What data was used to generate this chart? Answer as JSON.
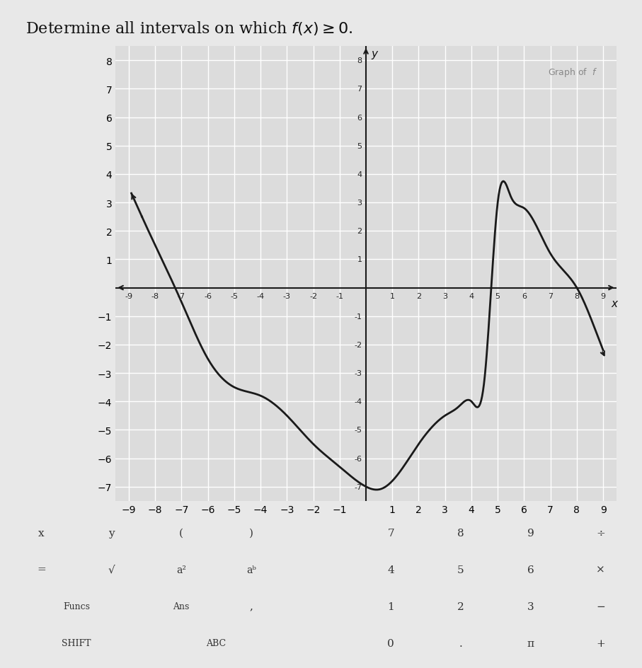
{
  "title": "Determine all intervals on which $f(x) \\geq 0$.",
  "graph_label": "Graph of  $f$",
  "bg_color": "#e8e8e8",
  "plot_bg_color": "#dcdcdc",
  "curve_color": "#1a1a1a",
  "axis_color": "#1a1a1a",
  "grid_color": "#ffffff",
  "xlim": [
    -9.5,
    9.5
  ],
  "ylim": [
    -7.5,
    8.5
  ],
  "xticks": [
    -9,
    -8,
    -7,
    -6,
    -5,
    -4,
    -3,
    -2,
    -1,
    1,
    2,
    3,
    4,
    5,
    6,
    7,
    8,
    9
  ],
  "yticks": [
    -7,
    -6,
    -5,
    -4,
    -3,
    -2,
    -1,
    1,
    2,
    3,
    4,
    5,
    6,
    7,
    8
  ],
  "keyboard_rows": [
    [
      "x",
      "y",
      "(",
      ")",
      "",
      "7",
      "8",
      "9",
      "÷"
    ],
    [
      "=",
      "√",
      "a²",
      "a^b",
      "",
      "4",
      "5",
      "6",
      "×"
    ],
    [
      "Funcs",
      "",
      "Ans",
      ",",
      "",
      "1",
      "2",
      "3",
      "−"
    ],
    [
      "SHIFT",
      "",
      "ABC",
      "",
      "",
      "0",
      ".",
      "π",
      "+"
    ]
  ],
  "key_bg": "#d0d0d0",
  "key_text_color": "#333333"
}
